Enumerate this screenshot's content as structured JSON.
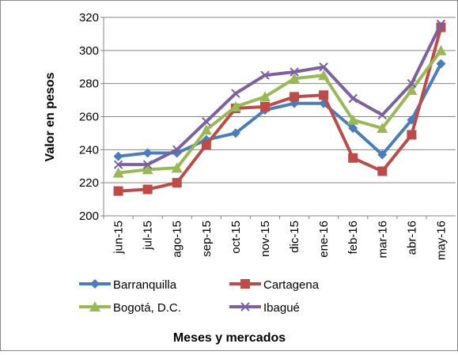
{
  "chart_data": {
    "type": "line",
    "x_label": "Meses y mercados",
    "y_label": "Valor en pesos",
    "categories": [
      "jun-15",
      "jul-15",
      "ago-15",
      "sep-15",
      "oct-15",
      "nov-15",
      "dic-15",
      "ene-16",
      "feb-16",
      "mar-16",
      "abr-16",
      "may-16"
    ],
    "series": [
      {
        "name": "Barranquilla",
        "color": "#4a7ebb",
        "marker": "diamond",
        "values": [
          236,
          238,
          238,
          246,
          250,
          264,
          268,
          268,
          253,
          237,
          258,
          292
        ]
      },
      {
        "name": "Cartagena",
        "color": "#be4b48",
        "marker": "square",
        "values": [
          215,
          216,
          220,
          243,
          265,
          266,
          272,
          273,
          235,
          227,
          249,
          314
        ]
      },
      {
        "name": "Bogotá, D.C.",
        "color": "#98b954",
        "marker": "triangle",
        "values": [
          226,
          228,
          229,
          252,
          266,
          272,
          283,
          285,
          258,
          253,
          276,
          300
        ]
      },
      {
        "name": "Ibagué",
        "color": "#7d60a0",
        "marker": "x",
        "values": [
          231,
          231,
          240,
          257,
          274,
          285,
          287,
          290,
          271,
          261,
          280,
          316
        ]
      }
    ],
    "ylim": [
      200,
      320
    ],
    "yticks": [
      200,
      220,
      240,
      260,
      280,
      300,
      320
    ],
    "grid": true
  }
}
